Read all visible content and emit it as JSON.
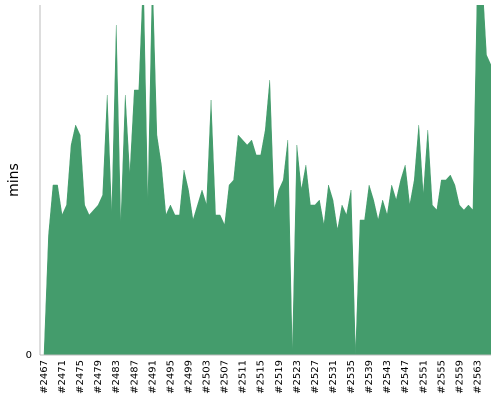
{
  "chart_data": {
    "type": "area",
    "y_label": "mins",
    "color": "#449c6c",
    "ylim": [
      0,
      35
    ],
    "yticks": [
      0
    ],
    "categories": [
      "#2467",
      null,
      null,
      null,
      "#2471",
      null,
      null,
      null,
      "#2475",
      null,
      null,
      null,
      "#2479",
      null,
      null,
      null,
      "#2483",
      null,
      null,
      null,
      "#2487",
      null,
      null,
      null,
      "#2491",
      null,
      null,
      null,
      "#2495",
      null,
      null,
      null,
      "#2499",
      null,
      null,
      null,
      "#2503",
      null,
      null,
      null,
      "#2507",
      null,
      null,
      null,
      "#2511",
      null,
      null,
      null,
      "#2515",
      null,
      null,
      null,
      "#2519",
      null,
      null,
      null,
      "#2523",
      null,
      null,
      null,
      "#2527",
      null,
      null,
      null,
      "#2531",
      null,
      null,
      null,
      "#2535",
      null,
      null,
      null,
      "#2539",
      null,
      null,
      null,
      "#2543",
      null,
      null,
      null,
      "#2547",
      null,
      null,
      null,
      "#2551",
      null,
      null,
      null,
      "#2555",
      null,
      null,
      null,
      "#2559",
      null,
      null,
      null,
      "#2563",
      null,
      null,
      null
    ],
    "values": [
      0,
      12,
      17,
      17,
      14,
      15,
      21,
      23,
      22,
      15,
      14,
      14.5,
      15,
      16,
      26,
      14,
      33,
      13,
      26,
      18,
      26.5,
      26.5,
      38,
      15,
      38,
      22,
      19,
      14,
      15,
      14,
      14,
      18.5,
      16.5,
      13.5,
      15,
      16.5,
      15,
      25.5,
      14,
      14,
      13,
      17,
      17.5,
      22,
      21.5,
      21,
      21.5,
      20,
      20,
      22.5,
      27.5,
      14.5,
      16.5,
      17.5,
      21.5,
      0,
      21,
      16.5,
      19,
      15,
      15,
      15.5,
      13,
      17,
      15.5,
      12.5,
      15,
      14,
      16.5,
      0,
      13.5,
      13.5,
      17,
      15.5,
      13.5,
      15.5,
      14,
      17,
      15.5,
      17.5,
      19,
      15,
      17.5,
      23,
      16,
      22.5,
      15,
      14.5,
      17.5,
      17.5,
      18,
      17,
      15,
      14.5,
      15,
      14.5,
      38,
      38,
      30,
      29
    ]
  }
}
